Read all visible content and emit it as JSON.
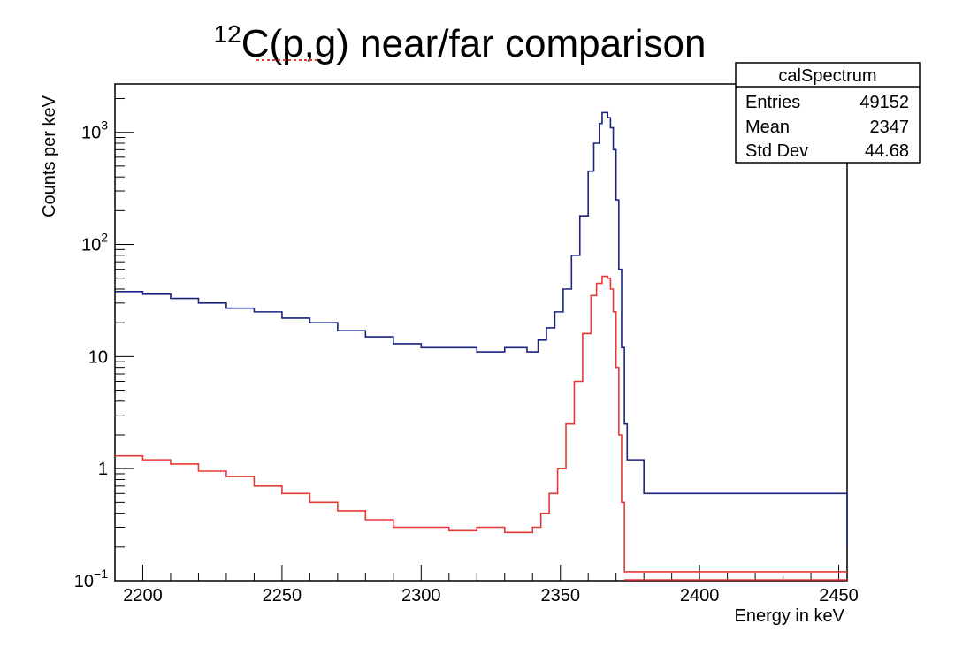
{
  "chart_data": {
    "type": "line",
    "title_sup": "12",
    "title_main": "C(p,g) near/far comparison",
    "xlabel": "Energy in keV",
    "ylabel": "Counts per keV",
    "xlim": [
      2190,
      2453
    ],
    "ylim": [
      0.1,
      2700
    ],
    "yscale": "log",
    "xticks": [
      "2200",
      "2250",
      "2300",
      "2350",
      "2400",
      "2450"
    ],
    "yticks": [
      {
        "value": 0.1,
        "base": "10",
        "exp": "−1"
      },
      {
        "value": 1,
        "base": "1",
        "exp": ""
      },
      {
        "value": 10,
        "base": "10",
        "exp": ""
      },
      {
        "value": 100,
        "base": "10",
        "exp": "2"
      },
      {
        "value": 1000,
        "base": "10",
        "exp": "3"
      }
    ],
    "stats_box": {
      "name": "calSpectrum",
      "rows": [
        {
          "label": "Entries",
          "value": "49152"
        },
        {
          "label": "Mean",
          "value": "2347"
        },
        {
          "label": "Std Dev",
          "value": "44.68"
        }
      ]
    },
    "series": [
      {
        "color": "#1a237e",
        "points": [
          [
            2190,
            38
          ],
          [
            2200,
            36
          ],
          [
            2210,
            33
          ],
          [
            2220,
            30
          ],
          [
            2230,
            27
          ],
          [
            2240,
            25
          ],
          [
            2250,
            22
          ],
          [
            2260,
            20
          ],
          [
            2270,
            17
          ],
          [
            2280,
            15
          ],
          [
            2290,
            13
          ],
          [
            2300,
            12
          ],
          [
            2310,
            12
          ],
          [
            2320,
            11
          ],
          [
            2330,
            12
          ],
          [
            2338,
            11
          ],
          [
            2342,
            14
          ],
          [
            2345,
            18
          ],
          [
            2348,
            25
          ],
          [
            2351,
            40
          ],
          [
            2354,
            80
          ],
          [
            2357,
            180
          ],
          [
            2360,
            450
          ],
          [
            2362,
            800
          ],
          [
            2364,
            1200
          ],
          [
            2365,
            1500
          ],
          [
            2366,
            1500
          ],
          [
            2367,
            1350
          ],
          [
            2368,
            1100
          ],
          [
            2369,
            700
          ],
          [
            2370,
            250
          ],
          [
            2371,
            60
          ],
          [
            2372,
            12
          ],
          [
            2373,
            2.5
          ],
          [
            2374,
            1.2
          ],
          [
            2380,
            0.6
          ],
          [
            2390,
            0.6
          ],
          [
            2400,
            0.6
          ],
          [
            2410,
            0.6
          ],
          [
            2420,
            0.6
          ],
          [
            2430,
            0.6
          ],
          [
            2440,
            0.6
          ],
          [
            2453,
            0.2
          ]
        ]
      },
      {
        "color": "#e53935",
        "points": [
          [
            2190,
            1.3
          ],
          [
            2200,
            1.2
          ],
          [
            2210,
            1.1
          ],
          [
            2220,
            0.95
          ],
          [
            2230,
            0.85
          ],
          [
            2240,
            0.7
          ],
          [
            2250,
            0.6
          ],
          [
            2260,
            0.5
          ],
          [
            2270,
            0.42
          ],
          [
            2280,
            0.35
          ],
          [
            2290,
            0.3
          ],
          [
            2300,
            0.3
          ],
          [
            2310,
            0.28
          ],
          [
            2320,
            0.3
          ],
          [
            2330,
            0.27
          ],
          [
            2340,
            0.3
          ],
          [
            2343,
            0.4
          ],
          [
            2346,
            0.6
          ],
          [
            2349,
            1.0
          ],
          [
            2352,
            2.5
          ],
          [
            2355,
            6
          ],
          [
            2358,
            16
          ],
          [
            2361,
            35
          ],
          [
            2363,
            45
          ],
          [
            2365,
            52
          ],
          [
            2366,
            52
          ],
          [
            2367,
            50
          ],
          [
            2368,
            40
          ],
          [
            2369,
            25
          ],
          [
            2370,
            8
          ],
          [
            2371,
            2
          ],
          [
            2372,
            0.5
          ],
          [
            2373,
            0.12
          ]
        ]
      }
    ]
  }
}
